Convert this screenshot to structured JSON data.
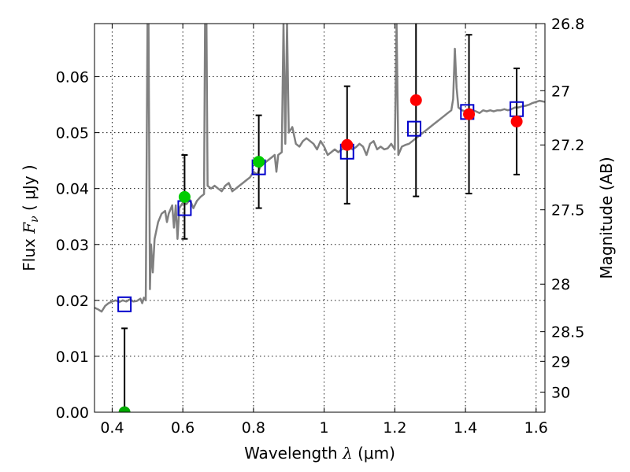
{
  "chart_data": {
    "type": "line",
    "title": "",
    "xlabel": {
      "prefix": "Wavelength ",
      "symbol": "λ",
      "unit": " (μm)"
    },
    "ylabel": {
      "prefix": "Flux ",
      "symbol": "F",
      "subscript": "ν",
      "unit": " ( μJy )"
    },
    "y2label": "Magnitude (AB)",
    "xlim": [
      0.35,
      1.625
    ],
    "ylim": [
      0.0,
      0.0695
    ],
    "grid": true,
    "x_ticks": [
      0.4,
      0.6,
      0.8,
      1.0,
      1.2,
      1.4,
      1.6
    ],
    "x_tick_labels": [
      "0.4",
      "0.6",
      "0.8",
      "1",
      "1.2",
      "1.4",
      "1.6"
    ],
    "y_ticks": [
      0.0,
      0.01,
      0.02,
      0.03,
      0.04,
      0.05,
      0.06
    ],
    "y_tick_labels": [
      "0.00",
      "0.01",
      "0.02",
      "0.03",
      "0.04",
      "0.05",
      "0.06"
    ],
    "y2_ticks": [
      {
        "label": "26.8",
        "flux": 0.0695
      },
      {
        "label": "27",
        "flux": 0.0575
      },
      {
        "label": "27.2",
        "flux": 0.0478
      },
      {
        "label": "27.5",
        "flux": 0.0362
      },
      {
        "label": "28",
        "flux": 0.0229
      },
      {
        "label": "28.5",
        "flux": 0.0144
      },
      {
        "label": "29",
        "flux": 0.0091
      },
      {
        "label": "30",
        "flux": 0.0036
      }
    ],
    "model_sed": {
      "name": "",
      "color": "#808080",
      "points": [
        [
          0.35,
          0.0187
        ],
        [
          0.36,
          0.0184
        ],
        [
          0.37,
          0.018
        ],
        [
          0.38,
          0.019
        ],
        [
          0.39,
          0.0195
        ],
        [
          0.4,
          0.0198
        ],
        [
          0.41,
          0.02
        ],
        [
          0.42,
          0.0197
        ],
        [
          0.43,
          0.02
        ],
        [
          0.44,
          0.0198
        ],
        [
          0.45,
          0.0202
        ],
        [
          0.46,
          0.0198
        ],
        [
          0.47,
          0.0199
        ],
        [
          0.48,
          0.0203
        ],
        [
          0.485,
          0.0195
        ],
        [
          0.49,
          0.0205
        ],
        [
          0.495,
          0.02
        ],
        [
          0.5,
          0.0695
        ],
        [
          0.503,
          0.0695
        ],
        [
          0.507,
          0.022
        ],
        [
          0.51,
          0.03
        ],
        [
          0.515,
          0.025
        ],
        [
          0.52,
          0.031
        ],
        [
          0.53,
          0.034
        ],
        [
          0.54,
          0.0355
        ],
        [
          0.55,
          0.036
        ],
        [
          0.555,
          0.034
        ],
        [
          0.56,
          0.0355
        ],
        [
          0.57,
          0.037
        ],
        [
          0.575,
          0.033
        ],
        [
          0.58,
          0.037
        ],
        [
          0.585,
          0.031
        ],
        [
          0.59,
          0.0365
        ],
        [
          0.6,
          0.0375
        ],
        [
          0.61,
          0.0372
        ],
        [
          0.62,
          0.038
        ],
        [
          0.63,
          0.0365
        ],
        [
          0.64,
          0.0378
        ],
        [
          0.65,
          0.0385
        ],
        [
          0.66,
          0.039
        ],
        [
          0.663,
          0.0695
        ],
        [
          0.667,
          0.0695
        ],
        [
          0.67,
          0.0405
        ],
        [
          0.68,
          0.04
        ],
        [
          0.69,
          0.0405
        ],
        [
          0.7,
          0.04
        ],
        [
          0.71,
          0.0395
        ],
        [
          0.72,
          0.0405
        ],
        [
          0.73,
          0.041
        ],
        [
          0.74,
          0.0395
        ],
        [
          0.75,
          0.04
        ],
        [
          0.76,
          0.0405
        ],
        [
          0.77,
          0.041
        ],
        [
          0.78,
          0.0415
        ],
        [
          0.79,
          0.042
        ],
        [
          0.8,
          0.043
        ],
        [
          0.81,
          0.0425
        ],
        [
          0.82,
          0.044
        ],
        [
          0.83,
          0.0445
        ],
        [
          0.84,
          0.045
        ],
        [
          0.85,
          0.0455
        ],
        [
          0.86,
          0.046
        ],
        [
          0.865,
          0.043
        ],
        [
          0.87,
          0.046
        ],
        [
          0.88,
          0.0465
        ],
        [
          0.885,
          0.0695
        ],
        [
          0.89,
          0.048
        ],
        [
          0.895,
          0.0695
        ],
        [
          0.9,
          0.05
        ],
        [
          0.91,
          0.051
        ],
        [
          0.92,
          0.048
        ],
        [
          0.93,
          0.0475
        ],
        [
          0.94,
          0.0485
        ],
        [
          0.95,
          0.049
        ],
        [
          0.96,
          0.0485
        ],
        [
          0.97,
          0.048
        ],
        [
          0.98,
          0.047
        ],
        [
          0.99,
          0.0485
        ],
        [
          1.0,
          0.0475
        ],
        [
          1.01,
          0.046
        ],
        [
          1.02,
          0.0465
        ],
        [
          1.03,
          0.047
        ],
        [
          1.04,
          0.0465
        ],
        [
          1.05,
          0.047
        ],
        [
          1.06,
          0.0472
        ],
        [
          1.07,
          0.0475
        ],
        [
          1.08,
          0.047
        ],
        [
          1.09,
          0.0474
        ],
        [
          1.1,
          0.048
        ],
        [
          1.11,
          0.0475
        ],
        [
          1.12,
          0.046
        ],
        [
          1.13,
          0.048
        ],
        [
          1.14,
          0.0485
        ],
        [
          1.15,
          0.047
        ],
        [
          1.16,
          0.0475
        ],
        [
          1.17,
          0.047
        ],
        [
          1.18,
          0.0472
        ],
        [
          1.19,
          0.048
        ],
        [
          1.2,
          0.047
        ],
        [
          1.205,
          0.0695
        ],
        [
          1.21,
          0.046
        ],
        [
          1.22,
          0.0475
        ],
        [
          1.23,
          0.0478
        ],
        [
          1.24,
          0.048
        ],
        [
          1.25,
          0.0485
        ],
        [
          1.26,
          0.049
        ],
        [
          1.27,
          0.0495
        ],
        [
          1.28,
          0.05
        ],
        [
          1.29,
          0.0505
        ],
        [
          1.3,
          0.051
        ],
        [
          1.31,
          0.0515
        ],
        [
          1.32,
          0.052
        ],
        [
          1.33,
          0.0525
        ],
        [
          1.34,
          0.053
        ],
        [
          1.35,
          0.0535
        ],
        [
          1.36,
          0.054
        ],
        [
          1.365,
          0.056
        ],
        [
          1.37,
          0.065
        ],
        [
          1.375,
          0.058
        ],
        [
          1.38,
          0.0545
        ],
        [
          1.39,
          0.054
        ],
        [
          1.4,
          0.0538
        ],
        [
          1.41,
          0.0535
        ],
        [
          1.42,
          0.054
        ],
        [
          1.43,
          0.0538
        ],
        [
          1.44,
          0.0535
        ],
        [
          1.45,
          0.054
        ],
        [
          1.46,
          0.0538
        ],
        [
          1.47,
          0.054
        ],
        [
          1.48,
          0.0538
        ],
        [
          1.49,
          0.054
        ],
        [
          1.5,
          0.054
        ],
        [
          1.51,
          0.0542
        ],
        [
          1.52,
          0.054
        ],
        [
          1.53,
          0.0542
        ],
        [
          1.54,
          0.0545
        ],
        [
          1.55,
          0.0545
        ],
        [
          1.56,
          0.0547
        ],
        [
          1.57,
          0.0548
        ],
        [
          1.58,
          0.055
        ],
        [
          1.59,
          0.0553
        ],
        [
          1.6,
          0.0555
        ],
        [
          1.61,
          0.0557
        ],
        [
          1.625,
          0.0555
        ]
      ]
    },
    "model_photometry": {
      "name": "",
      "marker": "open-square",
      "color": "#0000cc",
      "points": [
        [
          0.435,
          0.0193
        ],
        [
          0.605,
          0.0365
        ],
        [
          0.815,
          0.0438
        ],
        [
          1.065,
          0.0466
        ],
        [
          1.255,
          0.0507
        ],
        [
          1.405,
          0.0537
        ],
        [
          1.545,
          0.0542
        ]
      ]
    },
    "observed_photometry": [
      {
        "x": 0.435,
        "y": 0.0,
        "err_low": 0.0,
        "err_high": 0.015,
        "color": "#00aa00"
      },
      {
        "x": 0.605,
        "y": 0.0385,
        "err_low": 0.0075,
        "err_high": 0.0075,
        "color": "#00cc00"
      },
      {
        "x": 0.815,
        "y": 0.0448,
        "err_low": 0.0083,
        "err_high": 0.0083,
        "color": "#00cc00"
      },
      {
        "x": 1.065,
        "y": 0.0478,
        "err_low": 0.0105,
        "err_high": 0.0105,
        "color": "#ff0000"
      },
      {
        "x": 1.26,
        "y": 0.0558,
        "err_low": 0.0172,
        "err_high": 0.0172,
        "color": "#ff0000"
      },
      {
        "x": 1.41,
        "y": 0.0533,
        "err_low": 0.0142,
        "err_high": 0.0142,
        "color": "#ff0000"
      },
      {
        "x": 1.545,
        "y": 0.052,
        "err_low": 0.0095,
        "err_high": 0.0095,
        "color": "#ff0000"
      }
    ]
  }
}
